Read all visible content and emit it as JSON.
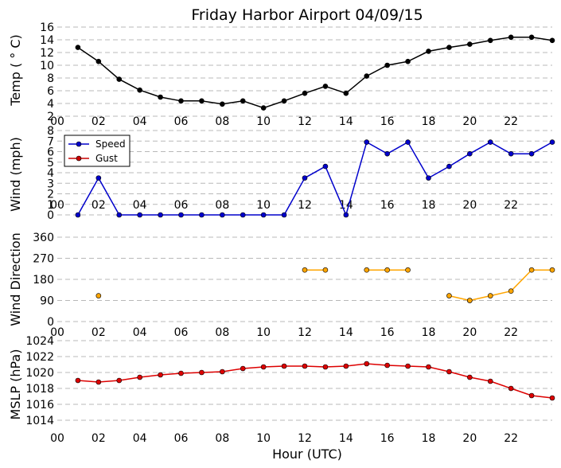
{
  "chart_data": {
    "title": "Friday Harbor Airport 04/09/15",
    "xlabel": "Hour (UTC)",
    "x_ticks": [
      "00",
      "02",
      "04",
      "06",
      "08",
      "10",
      "12",
      "14",
      "16",
      "18",
      "20",
      "22"
    ],
    "xlim": [
      0,
      24
    ],
    "grid": "horizontal dashed",
    "panels": [
      {
        "type": "line",
        "ylabel": "Temp ( ° C)",
        "ylim": [
          2,
          16
        ],
        "y_ticks": [
          2,
          4,
          6,
          8,
          10,
          12,
          14,
          16
        ],
        "series": [
          {
            "color": "#000000",
            "x": [
              1,
              2,
              3,
              4,
              5,
              6,
              7,
              8,
              9,
              10,
              11,
              12,
              13,
              14,
              15,
              16,
              17,
              18,
              19,
              20,
              21,
              22,
              23,
              24
            ],
            "values": [
              12.8,
              10.6,
              7.8,
              6.1,
              5.0,
              4.4,
              4.4,
              3.9,
              4.4,
              3.3,
              4.4,
              5.6,
              6.7,
              5.6,
              8.3,
              10.0,
              10.6,
              12.2,
              12.8,
              13.3,
              13.9,
              14.4,
              14.4,
              13.9
            ]
          }
        ]
      },
      {
        "type": "line",
        "ylabel": "Wind (mph)",
        "ylim": [
          0,
          8
        ],
        "y_ticks": [
          0,
          1,
          2,
          3,
          4,
          5,
          6,
          7,
          8
        ],
        "legend_position": "top-left",
        "series": [
          {
            "name": "Speed",
            "color": "#0000cc",
            "x": [
              1,
              2,
              3,
              4,
              5,
              6,
              7,
              8,
              9,
              10,
              11,
              12,
              13,
              14,
              15,
              16,
              17,
              18,
              19,
              20,
              21,
              22,
              23,
              24
            ],
            "values": [
              0,
              3.5,
              0,
              0,
              0,
              0,
              0,
              0,
              0,
              0,
              0,
              3.5,
              4.6,
              0,
              6.9,
              5.8,
              6.9,
              3.5,
              4.6,
              5.8,
              6.9,
              5.8,
              5.8,
              6.9
            ]
          },
          {
            "name": "Gust",
            "color": "#cc0000",
            "x": [],
            "values": []
          }
        ]
      },
      {
        "type": "line",
        "ylabel": "Wind Direction",
        "ylim": [
          0,
          360
        ],
        "y_ticks": [
          0,
          90,
          180,
          270,
          360
        ],
        "series": [
          {
            "color": "#ffa500",
            "x": [
              2
            ],
            "values": [
              110
            ]
          },
          {
            "color": "#ffa500",
            "x": [
              12,
              13
            ],
            "values": [
              220,
              220
            ]
          },
          {
            "color": "#ffa500",
            "x": [
              15,
              16,
              17
            ],
            "values": [
              220,
              220,
              220
            ]
          },
          {
            "color": "#ffa500",
            "x": [
              19,
              20
            ],
            "values": [
              110,
              90
            ]
          },
          {
            "color": "#ffa500",
            "x": [
              20,
              21,
              22,
              23,
              24
            ],
            "values": [
              90,
              110,
              130,
              220,
              220
            ]
          }
        ]
      },
      {
        "type": "line",
        "ylabel": "MSLP (hPa)",
        "ylim": [
          1013,
          1024
        ],
        "y_ticks": [
          1014,
          1016,
          1018,
          1020,
          1022,
          1024
        ],
        "series": [
          {
            "color": "#dd0000",
            "x": [
              1,
              2,
              3,
              4,
              5,
              6,
              7,
              8,
              9,
              10,
              11,
              12,
              13,
              14,
              15,
              16,
              17,
              18,
              19,
              20,
              21,
              22,
              23,
              24
            ],
            "values": [
              1019.0,
              1018.8,
              1019.0,
              1019.4,
              1019.7,
              1019.9,
              1020.0,
              1020.1,
              1020.5,
              1020.7,
              1020.8,
              1020.8,
              1020.7,
              1020.8,
              1021.1,
              1020.9,
              1020.8,
              1020.7,
              1020.1,
              1019.4,
              1018.9,
              1018.0,
              1017.1,
              1016.8
            ]
          }
        ]
      }
    ]
  }
}
